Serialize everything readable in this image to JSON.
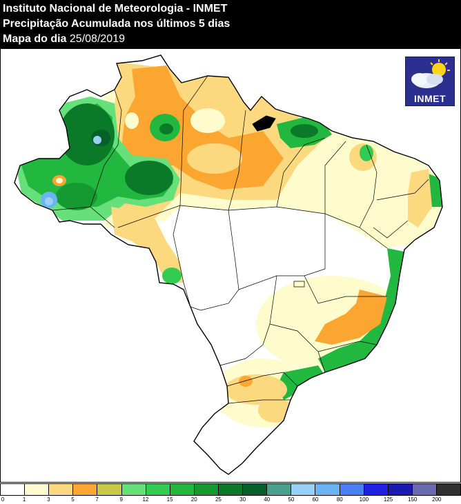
{
  "header": {
    "line1": "Instituto Nacional de Meteorologia - INMET",
    "line2": "Precipitação Acumulada nos últimos 5 dias",
    "line3_label": "Mapa do dia",
    "line3_date": "25/08/2019"
  },
  "logo": {
    "text": "INMET",
    "icon": "sun-cloud-icon"
  },
  "legend": {
    "colors": [
      "#ffffff",
      "#fefccc",
      "#fcd97f",
      "#fca632",
      "#c8c848",
      "#66e07a",
      "#33cc52",
      "#22b840",
      "#149a30",
      "#0a7a28",
      "#06602a",
      "#4aa08e",
      "#9ad0f5",
      "#6ab4f5",
      "#4a7ef5",
      "#2020e0",
      "#1a1ab0",
      "#6a6ab0",
      "#303030"
    ],
    "labels": [
      "0",
      "1",
      "3",
      "5",
      "7",
      "9",
      "12",
      "15",
      "20",
      "25",
      "30",
      "40",
      "50",
      "60",
      "80",
      "100",
      "125",
      "150",
      "200"
    ]
  },
  "colors": {
    "country_fill": "#ffffff",
    "light_yellow": "#fefccc",
    "yellow": "#fcd97f",
    "orange": "#fca632",
    "olive": "#c8c848",
    "green_light": "#66e07a",
    "green": "#22b840",
    "green_dark": "#0a7a28",
    "blue_light": "#9ad0f5"
  }
}
